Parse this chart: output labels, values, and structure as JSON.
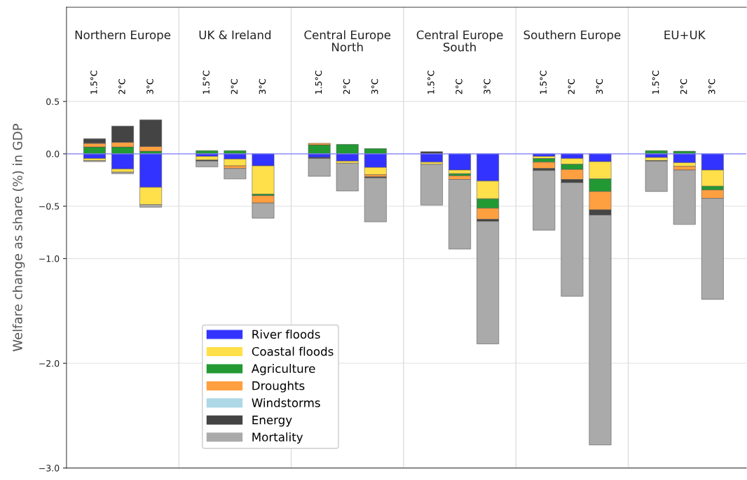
{
  "chart_data": {
    "type": "bar",
    "stacked": true,
    "ylabel": "Welfare change as share (%) in GDP",
    "categories": [
      "1.5°C",
      "2°C",
      "3°C",
      "1.5°C",
      "2°C",
      "3°C",
      "1.5°C",
      "2°C",
      "3°C",
      "1.5°C",
      "2°C",
      "3°C",
      "1.5°C",
      "2°C",
      "3°C",
      "1.5°C",
      "2°C",
      "3°C"
    ],
    "annotations": [
      "Northern Europe",
      "UK & Ireland",
      "Central Europe\nNorth",
      "Central Europe\nSouth",
      "Southern Europe",
      "EU+UK"
    ],
    "series": [
      {
        "name": "River floods",
        "color": "#3333ff",
        "values": [
          -0.045,
          -0.145,
          -0.32,
          -0.025,
          -0.05,
          -0.115,
          -0.035,
          -0.07,
          -0.13,
          -0.08,
          -0.155,
          -0.26,
          -0.025,
          -0.045,
          -0.075,
          -0.035,
          -0.085,
          -0.155
        ]
      },
      {
        "name": "Coastal floods",
        "color": "#ffe04a",
        "values": [
          -0.02,
          -0.03,
          -0.165,
          -0.035,
          -0.065,
          -0.27,
          null,
          -0.02,
          -0.07,
          -0.02,
          -0.035,
          -0.17,
          -0.02,
          -0.055,
          -0.165,
          -0.03,
          -0.035,
          -0.155
        ]
      },
      {
        "name": "Agriculture",
        "color": "#229933",
        "values": [
          0.065,
          0.065,
          0.025,
          0.03,
          0.03,
          -0.015,
          0.085,
          0.09,
          0.05,
          null,
          -0.02,
          -0.09,
          -0.035,
          -0.05,
          -0.12,
          0.03,
          0.025,
          -0.035
        ]
      },
      {
        "name": "Droughts",
        "color": "#ffa040",
        "values": [
          0.035,
          0.045,
          0.045,
          null,
          -0.025,
          -0.07,
          0.015,
          null,
          -0.02,
          null,
          -0.035,
          -0.105,
          -0.06,
          -0.095,
          -0.175,
          null,
          -0.035,
          -0.08
        ]
      },
      {
        "name": "Windstorms",
        "color": "#add8e6",
        "values": [
          null,
          null,
          null,
          null,
          null,
          null,
          null,
          null,
          null,
          null,
          null,
          null,
          null,
          null,
          null,
          null,
          null,
          null
        ]
      },
      {
        "name": "Energy",
        "color": "#444444",
        "values": [
          0.045,
          0.155,
          0.255,
          -0.01,
          null,
          null,
          -0.01,
          null,
          -0.01,
          0.02,
          null,
          -0.02,
          -0.02,
          -0.03,
          -0.05,
          -0.005,
          null,
          null
        ]
      },
      {
        "name": "Mortality",
        "color": "#aaaaaa",
        "values": [
          -0.01,
          -0.015,
          -0.025,
          -0.055,
          -0.1,
          -0.145,
          -0.17,
          -0.265,
          -0.42,
          -0.39,
          -0.665,
          -1.17,
          -0.57,
          -1.085,
          -2.195,
          -0.29,
          -0.52,
          -0.965
        ]
      }
    ],
    "ylim": [
      -3.0,
      1.4
    ],
    "yticks": [
      {
        "value": 0.5,
        "label": "0.5"
      },
      {
        "value": 0,
        "label": "0.0"
      },
      {
        "value": -0.5,
        "label": "−0.5"
      },
      {
        "value": -1,
        "label": "−1.0"
      },
      {
        "value": -2,
        "label": "−2.0"
      },
      {
        "value": -3,
        "label": "−3.0"
      }
    ],
    "ref_lines": [
      {
        "axis": "y",
        "value": 0,
        "color": "#8080ff"
      }
    ],
    "grid": "y",
    "legend": "bottom"
  }
}
